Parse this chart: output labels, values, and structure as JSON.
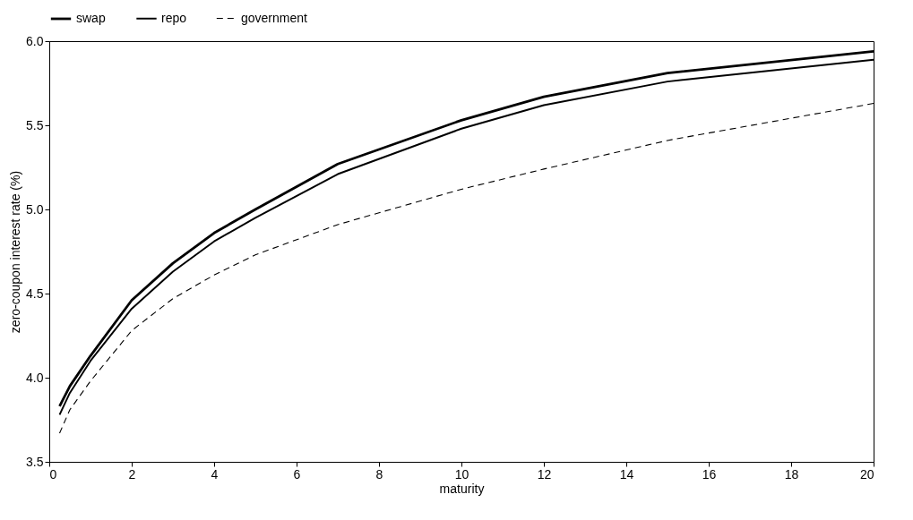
{
  "chart_data": {
    "type": "line",
    "xlabel": "maturity",
    "ylabel": "zero-coupon interest rate (%)",
    "x": [
      0.25,
      0.5,
      1,
      2,
      3,
      4,
      5,
      7,
      10,
      12,
      15,
      20
    ],
    "series": [
      {
        "name": "swap",
        "color": "#000000",
        "line_style": "solid",
        "values": [
          3.83,
          3.95,
          4.13,
          4.46,
          4.68,
          4.86,
          5.0,
          5.27,
          5.53,
          5.67,
          5.81,
          5.94
        ]
      },
      {
        "name": "repo",
        "color": "#000000",
        "line_style": "solid",
        "values": [
          3.78,
          3.91,
          4.1,
          4.41,
          4.63,
          4.81,
          4.95,
          5.21,
          5.48,
          5.62,
          5.76,
          5.89
        ]
      },
      {
        "name": "government",
        "color": "#000000",
        "line_style": "dashed",
        "values": [
          3.67,
          3.81,
          3.98,
          4.28,
          4.47,
          4.61,
          4.73,
          4.91,
          5.12,
          5.24,
          5.41,
          5.63
        ]
      }
    ],
    "xlim": [
      0,
      20
    ],
    "xticks": [
      0,
      2,
      4,
      6,
      8,
      10,
      12,
      14,
      16,
      18,
      20
    ],
    "ylim": [
      3.5,
      6
    ],
    "yticks": [
      {
        "value": 3.5,
        "label": "3.5"
      },
      {
        "value": 4,
        "label": "4.0"
      },
      {
        "value": 4.5,
        "label": "4.5"
      },
      {
        "value": 5,
        "label": "5.0"
      },
      {
        "value": 5.5,
        "label": "5.5"
      },
      {
        "value": 6,
        "label": "6.0"
      }
    ],
    "grid": false,
    "legend": "top",
    "marker": "none"
  }
}
